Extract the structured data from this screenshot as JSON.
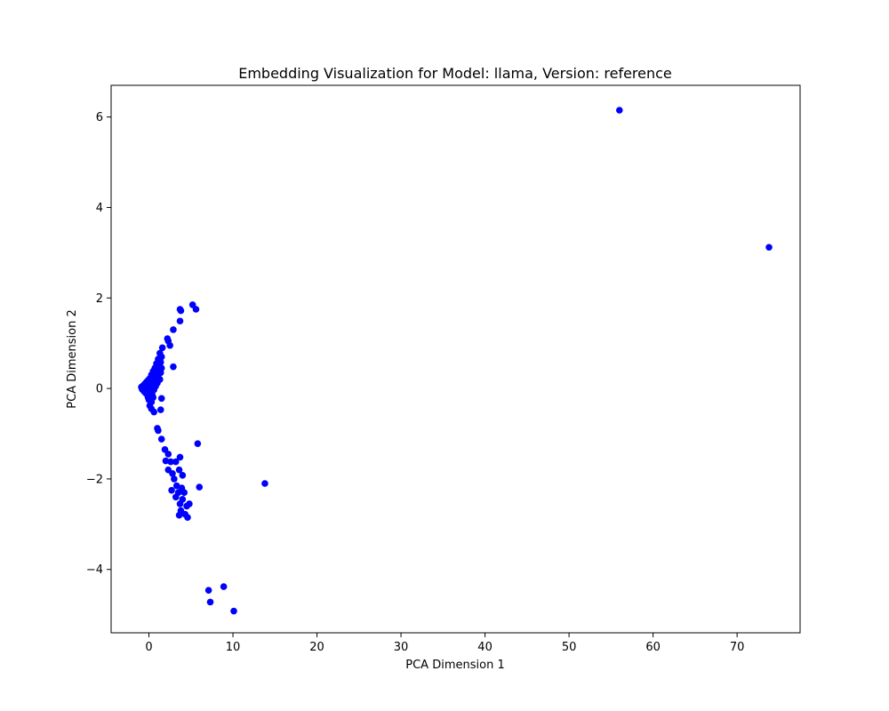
{
  "chart_data": {
    "type": "scatter",
    "title": "Embedding Visualization for Model: llama, Version: reference",
    "xlabel": "PCA Dimension 1",
    "ylabel": "PCA Dimension 2",
    "xlim": [
      -4.5,
      77.5
    ],
    "ylim": [
      -5.4,
      6.7
    ],
    "xticks": [
      0,
      10,
      20,
      30,
      40,
      50,
      60,
      70
    ],
    "yticks": [
      -4,
      -2,
      0,
      2,
      4,
      6
    ],
    "grid": false,
    "marker_color": "#0000ff",
    "points": [
      {
        "x": 56.0,
        "y": 6.15
      },
      {
        "x": 73.8,
        "y": 3.12
      },
      {
        "x": 13.8,
        "y": -2.1
      },
      {
        "x": 7.1,
        "y": -4.46
      },
      {
        "x": 7.3,
        "y": -4.72
      },
      {
        "x": 8.9,
        "y": -4.38
      },
      {
        "x": 10.1,
        "y": -4.92
      },
      {
        "x": 5.2,
        "y": 1.85
      },
      {
        "x": 5.6,
        "y": 1.75
      },
      {
        "x": 3.7,
        "y": 1.75
      },
      {
        "x": 3.8,
        "y": 1.72
      },
      {
        "x": 3.7,
        "y": 1.49
      },
      {
        "x": 2.9,
        "y": 1.3
      },
      {
        "x": 2.2,
        "y": 1.1
      },
      {
        "x": 2.3,
        "y": 1.05
      },
      {
        "x": 2.5,
        "y": 0.95
      },
      {
        "x": 1.6,
        "y": 0.9
      },
      {
        "x": 2.9,
        "y": 0.48
      },
      {
        "x": 1.3,
        "y": 0.78
      },
      {
        "x": 1.5,
        "y": 0.7
      },
      {
        "x": 1.1,
        "y": 0.65
      },
      {
        "x": 1.4,
        "y": 0.58
      },
      {
        "x": 0.9,
        "y": 0.55
      },
      {
        "x": 1.2,
        "y": 0.5
      },
      {
        "x": 1.5,
        "y": 0.45
      },
      {
        "x": 0.7,
        "y": 0.45
      },
      {
        "x": 1.0,
        "y": 0.4
      },
      {
        "x": 0.5,
        "y": 0.38
      },
      {
        "x": 1.4,
        "y": 0.35
      },
      {
        "x": 0.8,
        "y": 0.33
      },
      {
        "x": 0.3,
        "y": 0.3
      },
      {
        "x": 1.1,
        "y": 0.28
      },
      {
        "x": 0.6,
        "y": 0.25
      },
      {
        "x": 0.1,
        "y": 0.22
      },
      {
        "x": 1.3,
        "y": 0.2
      },
      {
        "x": 0.9,
        "y": 0.2
      },
      {
        "x": -0.1,
        "y": 0.18
      },
      {
        "x": 0.4,
        "y": 0.17
      },
      {
        "x": 0.7,
        "y": 0.15
      },
      {
        "x": -0.3,
        "y": 0.14
      },
      {
        "x": 0.2,
        "y": 0.12
      },
      {
        "x": 1.0,
        "y": 0.12
      },
      {
        "x": -0.5,
        "y": 0.1
      },
      {
        "x": 0.0,
        "y": 0.08
      },
      {
        "x": 0.5,
        "y": 0.08
      },
      {
        "x": -0.7,
        "y": 0.06
      },
      {
        "x": -0.2,
        "y": 0.05
      },
      {
        "x": 0.8,
        "y": 0.05
      },
      {
        "x": -0.9,
        "y": 0.03
      },
      {
        "x": 0.3,
        "y": 0.02
      },
      {
        "x": -0.4,
        "y": 0.01
      },
      {
        "x": -0.6,
        "y": 0.0
      },
      {
        "x": 0.1,
        "y": 0.0
      },
      {
        "x": -0.8,
        "y": -0.02
      },
      {
        "x": -0.3,
        "y": -0.03
      },
      {
        "x": 0.6,
        "y": -0.03
      },
      {
        "x": -0.6,
        "y": -0.06
      },
      {
        "x": -0.1,
        "y": -0.06
      },
      {
        "x": -0.4,
        "y": -0.1
      },
      {
        "x": 0.2,
        "y": -0.1
      },
      {
        "x": -0.2,
        "y": -0.14
      },
      {
        "x": 0.4,
        "y": -0.14
      },
      {
        "x": -0.1,
        "y": -0.2
      },
      {
        "x": 0.5,
        "y": -0.2
      },
      {
        "x": 0.0,
        "y": -0.25
      },
      {
        "x": 0.3,
        "y": -0.3
      },
      {
        "x": 1.5,
        "y": -0.22
      },
      {
        "x": 0.1,
        "y": -0.38
      },
      {
        "x": 0.3,
        "y": -0.45
      },
      {
        "x": 0.6,
        "y": -0.52
      },
      {
        "x": 1.4,
        "y": -0.47
      },
      {
        "x": 1.0,
        "y": -0.88
      },
      {
        "x": 1.1,
        "y": -0.93
      },
      {
        "x": 1.5,
        "y": -1.12
      },
      {
        "x": 1.9,
        "y": -1.35
      },
      {
        "x": 2.3,
        "y": -1.45
      },
      {
        "x": 2.0,
        "y": -1.6
      },
      {
        "x": 2.6,
        "y": -1.62
      },
      {
        "x": 3.2,
        "y": -1.62
      },
      {
        "x": 2.3,
        "y": -1.8
      },
      {
        "x": 2.8,
        "y": -1.88
      },
      {
        "x": 3.6,
        "y": -1.8
      },
      {
        "x": 3.7,
        "y": -1.52
      },
      {
        "x": 3.0,
        "y": -2.0
      },
      {
        "x": 4.0,
        "y": -1.92
      },
      {
        "x": 3.3,
        "y": -2.15
      },
      {
        "x": 2.7,
        "y": -2.25
      },
      {
        "x": 3.9,
        "y": -2.2
      },
      {
        "x": 3.5,
        "y": -2.3
      },
      {
        "x": 4.2,
        "y": -2.3
      },
      {
        "x": 3.2,
        "y": -2.4
      },
      {
        "x": 4.0,
        "y": -2.45
      },
      {
        "x": 3.7,
        "y": -2.55
      },
      {
        "x": 4.5,
        "y": -2.6
      },
      {
        "x": 3.8,
        "y": -2.7
      },
      {
        "x": 4.3,
        "y": -2.78
      },
      {
        "x": 3.6,
        "y": -2.8
      },
      {
        "x": 4.6,
        "y": -2.85
      },
      {
        "x": 4.8,
        "y": -2.55
      },
      {
        "x": 5.8,
        "y": -1.22
      },
      {
        "x": 6.0,
        "y": -2.18
      }
    ]
  }
}
